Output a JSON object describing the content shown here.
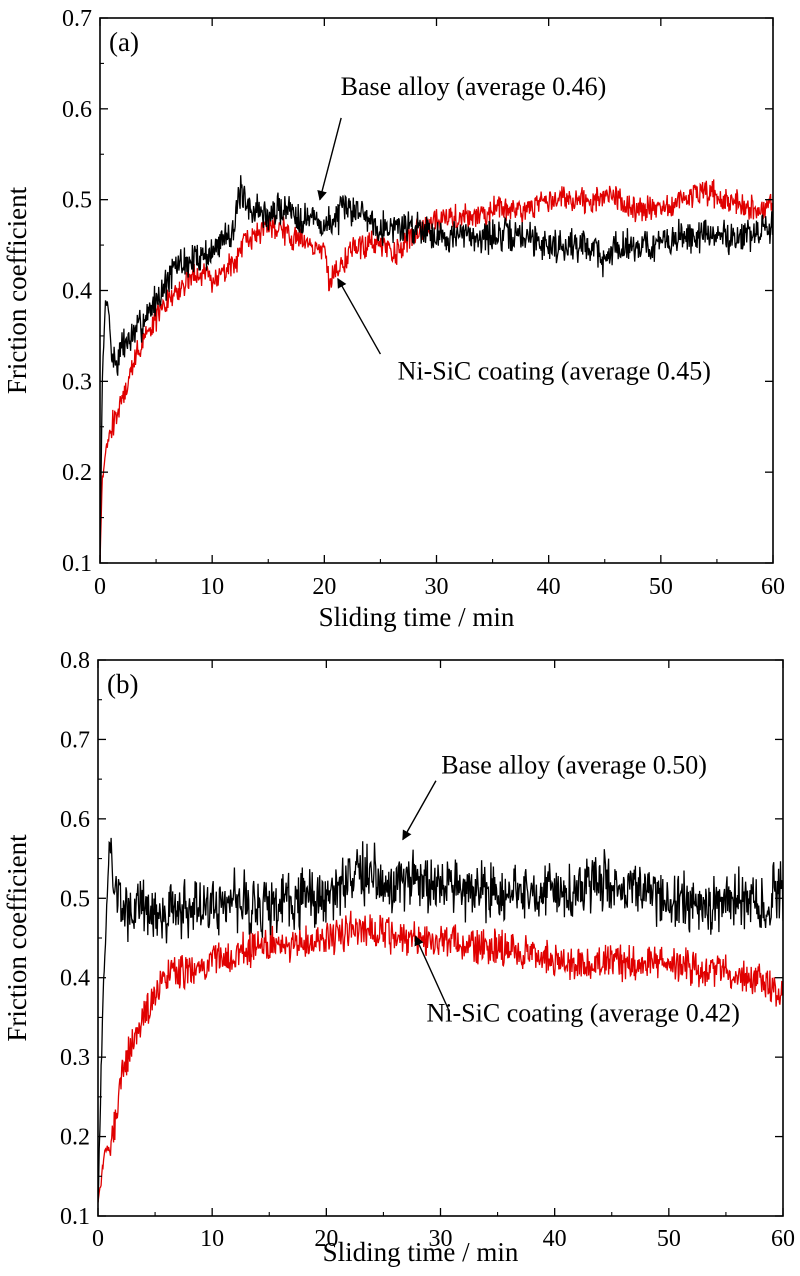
{
  "chart_data": [
    {
      "type": "line",
      "panel_label": "(a)",
      "xlabel": "Sliding time / min",
      "ylabel": "Friction coefficient",
      "xlim": [
        0,
        60
      ],
      "ylim": [
        0.1,
        0.7
      ],
      "xticks": [
        0,
        10,
        20,
        30,
        40,
        50,
        60
      ],
      "yticks": [
        0.1,
        0.2,
        0.3,
        0.4,
        0.5,
        0.6,
        0.7
      ],
      "grid": false,
      "legend": "none",
      "series": [
        {
          "name": "Base alloy (average 0.46)",
          "color": "#000000",
          "noise": 0.015,
          "x": [
            0,
            0.2,
            0.5,
            0.8,
            1,
            1.5,
            2,
            3,
            4,
            5,
            6,
            7,
            8,
            9,
            10,
            11,
            12,
            12.5,
            13,
            14,
            15,
            16,
            17,
            18,
            19,
            20,
            21,
            22,
            23,
            24,
            25,
            26,
            27,
            28,
            29,
            30,
            32,
            35,
            38,
            40,
            42,
            44,
            45,
            46,
            48,
            50,
            52,
            54,
            56,
            58,
            60
          ],
          "y": [
            0.1,
            0.3,
            0.39,
            0.38,
            0.33,
            0.32,
            0.34,
            0.35,
            0.37,
            0.39,
            0.41,
            0.43,
            0.43,
            0.44,
            0.44,
            0.46,
            0.47,
            0.51,
            0.49,
            0.49,
            0.48,
            0.49,
            0.49,
            0.48,
            0.48,
            0.47,
            0.48,
            0.49,
            0.49,
            0.48,
            0.47,
            0.47,
            0.47,
            0.47,
            0.47,
            0.46,
            0.46,
            0.46,
            0.46,
            0.45,
            0.45,
            0.45,
            0.43,
            0.45,
            0.45,
            0.45,
            0.46,
            0.46,
            0.46,
            0.46,
            0.47
          ]
        },
        {
          "name": "Ni-SiC coating (average 0.45)",
          "color": "#e00000",
          "noise": 0.012,
          "x": [
            0,
            0.2,
            0.5,
            1,
            2,
            3,
            4,
            5,
            6,
            7,
            8,
            9,
            10,
            11,
            12,
            13,
            14,
            15,
            16,
            17,
            18,
            19,
            20,
            20.5,
            21,
            22,
            23,
            24,
            25,
            26,
            27,
            28,
            29,
            30,
            32,
            35,
            38,
            40,
            42,
            44,
            46,
            48,
            50,
            52,
            54,
            56,
            58,
            60
          ],
          "y": [
            0.1,
            0.19,
            0.22,
            0.25,
            0.28,
            0.32,
            0.35,
            0.37,
            0.39,
            0.4,
            0.41,
            0.42,
            0.41,
            0.42,
            0.43,
            0.45,
            0.46,
            0.47,
            0.47,
            0.46,
            0.46,
            0.45,
            0.44,
            0.41,
            0.42,
            0.44,
            0.45,
            0.45,
            0.45,
            0.44,
            0.45,
            0.46,
            0.47,
            0.48,
            0.48,
            0.49,
            0.49,
            0.5,
            0.5,
            0.5,
            0.5,
            0.49,
            0.49,
            0.5,
            0.51,
            0.5,
            0.49,
            0.49
          ]
        }
      ],
      "annotations": [
        {
          "text": "Base alloy (average 0.46)",
          "text_x": 33.3,
          "text_y": 0.615,
          "anchor": "middle",
          "arrow_from": [
            21.5,
            0.59
          ],
          "arrow_to": [
            19.6,
            0.5
          ]
        },
        {
          "text": "Ni-SiC coating (average 0.45)",
          "text_x": 40.5,
          "text_y": 0.302,
          "anchor": "middle",
          "arrow_from": [
            25.0,
            0.33
          ],
          "arrow_to": [
            21.2,
            0.413
          ]
        }
      ]
    },
    {
      "type": "line",
      "panel_label": "(b)",
      "xlabel": "Sliding time / min",
      "ylabel": "Friction coefficient",
      "xlim": [
        0,
        60
      ],
      "ylim": [
        0.1,
        0.8
      ],
      "xticks": [
        0,
        10,
        20,
        30,
        40,
        50,
        60
      ],
      "yticks": [
        0.1,
        0.2,
        0.3,
        0.4,
        0.5,
        0.6,
        0.7,
        0.8
      ],
      "grid": false,
      "legend": "none",
      "series": [
        {
          "name": "Base alloy (average 0.50)",
          "color": "#000000",
          "noise": 0.03,
          "x": [
            0,
            0.5,
            1,
            1.5,
            2,
            3,
            4,
            5,
            6,
            8,
            10,
            12,
            14,
            16,
            18,
            20,
            22,
            24,
            26,
            28,
            30,
            32,
            34,
            36,
            38,
            40,
            42,
            44,
            46,
            48,
            50,
            52,
            54,
            56,
            58,
            60
          ],
          "y": [
            0.12,
            0.4,
            0.57,
            0.51,
            0.49,
            0.48,
            0.49,
            0.48,
            0.48,
            0.49,
            0.49,
            0.5,
            0.49,
            0.49,
            0.5,
            0.5,
            0.53,
            0.53,
            0.52,
            0.52,
            0.51,
            0.51,
            0.51,
            0.51,
            0.51,
            0.51,
            0.51,
            0.52,
            0.51,
            0.5,
            0.5,
            0.49,
            0.49,
            0.5,
            0.49,
            0.51
          ]
        },
        {
          "name": "Ni-SiC coating (average 0.42)",
          "color": "#e00000",
          "noise": 0.018,
          "x": [
            0,
            0.5,
            1,
            1.5,
            2,
            3,
            4,
            5,
            6,
            7,
            8,
            10,
            12,
            14,
            16,
            18,
            20,
            22,
            24,
            26,
            28,
            30,
            32,
            34,
            36,
            38,
            40,
            42,
            44,
            46,
            48,
            50,
            52,
            54,
            56,
            58,
            60
          ],
          "y": [
            0.12,
            0.17,
            0.19,
            0.22,
            0.27,
            0.32,
            0.35,
            0.38,
            0.4,
            0.41,
            0.41,
            0.42,
            0.43,
            0.44,
            0.44,
            0.44,
            0.45,
            0.46,
            0.46,
            0.45,
            0.45,
            0.45,
            0.44,
            0.44,
            0.44,
            0.43,
            0.42,
            0.42,
            0.42,
            0.42,
            0.42,
            0.42,
            0.41,
            0.41,
            0.4,
            0.4,
            0.38
          ]
        }
      ],
      "annotations": [
        {
          "text": "Base alloy (average 0.50)",
          "text_x": 41.7,
          "text_y": 0.657,
          "anchor": "middle",
          "arrow_from": [
            29.6,
            0.648
          ],
          "arrow_to": [
            26.7,
            0.574
          ]
        },
        {
          "text": "Ni-SiC coating (average 0.42)",
          "text_x": 42.5,
          "text_y": 0.345,
          "anchor": "middle",
          "arrow_from": [
            30.7,
            0.36
          ],
          "arrow_to": [
            27.8,
            0.452
          ]
        }
      ]
    }
  ]
}
